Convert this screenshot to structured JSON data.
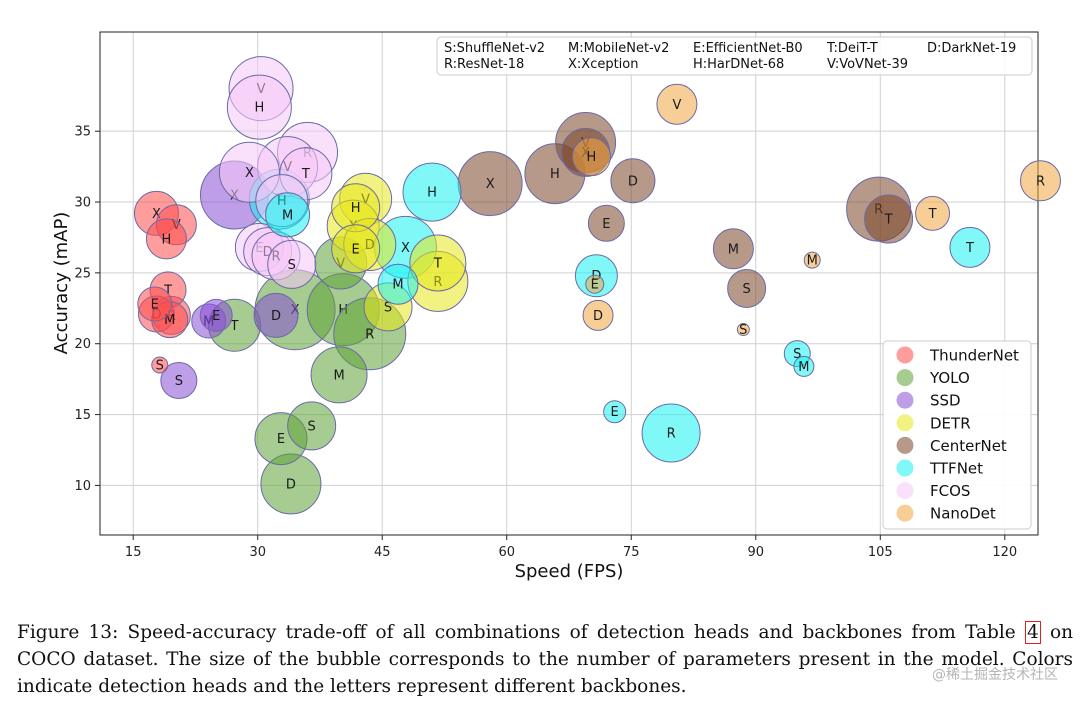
{
  "chart_data": {
    "type": "scatter",
    "subtype": "bubble",
    "xlabel": "Speed (FPS)",
    "ylabel": "Accuracy (mAP)",
    "xlim": [
      11,
      124
    ],
    "ylim": [
      6.5,
      42
    ],
    "xticks": [
      15,
      30,
      45,
      60,
      75,
      90,
      105,
      120
    ],
    "yticks": [
      10,
      15,
      20,
      25,
      30,
      35
    ],
    "grid": true,
    "legend_position": "lower-right",
    "backbone_key": [
      {
        "letter": "S",
        "text": "S:ShuffleNet-v2"
      },
      {
        "letter": "M",
        "text": "M:MobileNet-v2"
      },
      {
        "letter": "E",
        "text": "E:EfficientNet-B0"
      },
      {
        "letter": "T",
        "text": "T:DeiT-T"
      },
      {
        "letter": "D",
        "text": "D:DarkNet-19"
      },
      {
        "letter": "R",
        "text": "R:ResNet-18"
      },
      {
        "letter": "X",
        "text": "X:Xception"
      },
      {
        "letter": "H",
        "text": "H:HarDNet-68"
      },
      {
        "letter": "V",
        "text": "V:VoVNet-39"
      }
    ],
    "series": [
      {
        "name": "ThunderNet",
        "color": "#ff4d4d",
        "points": [
          {
            "letter": "X",
            "x": 17.8,
            "y": 29.2,
            "size": 22
          },
          {
            "letter": "V",
            "x": 20.2,
            "y": 28.4,
            "size": 20
          },
          {
            "letter": "H",
            "x": 19.0,
            "y": 27.4,
            "size": 20
          },
          {
            "letter": "T",
            "x": 19.2,
            "y": 23.8,
            "size": 18
          },
          {
            "letter": "E",
            "x": 17.6,
            "y": 22.8,
            "size": 17
          },
          {
            "letter": "D",
            "x": 17.8,
            "y": 22.1,
            "size": 18
          },
          {
            "letter": "R",
            "x": 19.6,
            "y": 22.0,
            "size": 19
          },
          {
            "letter": "M",
            "x": 19.4,
            "y": 21.7,
            "size": 18
          },
          {
            "letter": "S",
            "x": 18.2,
            "y": 18.5,
            "size": 8
          }
        ]
      },
      {
        "name": "YOLO",
        "color": "#5ea336",
        "points": [
          {
            "letter": "T",
            "x": 27.2,
            "y": 21.3,
            "size": 26
          },
          {
            "letter": "X",
            "x": 34.5,
            "y": 22.4,
            "size": 40
          },
          {
            "letter": "H",
            "x": 40.3,
            "y": 22.4,
            "size": 36
          },
          {
            "letter": "R",
            "x": 43.5,
            "y": 20.7,
            "size": 36
          },
          {
            "letter": "V",
            "x": 40.0,
            "y": 25.7,
            "size": 26
          },
          {
            "letter": "M",
            "x": 39.8,
            "y": 17.8,
            "size": 28
          },
          {
            "letter": "S",
            "x": 36.5,
            "y": 14.2,
            "size": 24
          },
          {
            "letter": "E",
            "x": 32.8,
            "y": 13.3,
            "size": 26
          },
          {
            "letter": "D",
            "x": 34.0,
            "y": 10.1,
            "size": 30
          }
        ]
      },
      {
        "name": "SSD",
        "color": "#8a4fd6",
        "points": [
          {
            "letter": "X",
            "x": 27.2,
            "y": 30.5,
            "size": 34
          },
          {
            "letter": "S",
            "x": 20.5,
            "y": 17.4,
            "size": 18
          },
          {
            "letter": "M",
            "x": 24.1,
            "y": 21.6,
            "size": 17
          },
          {
            "letter": "E",
            "x": 25.0,
            "y": 22.0,
            "size": 16
          },
          {
            "letter": "D",
            "x": 32.2,
            "y": 22.0,
            "size": 22
          }
        ]
      },
      {
        "name": "DETR",
        "color": "#e8e81c",
        "points": [
          {
            "letter": "V",
            "x": 43.0,
            "y": 30.2,
            "size": 26
          },
          {
            "letter": "H",
            "x": 41.8,
            "y": 29.6,
            "size": 24
          },
          {
            "letter": "X",
            "x": 41.5,
            "y": 28.3,
            "size": 26
          },
          {
            "letter": "D",
            "x": 43.5,
            "y": 27.0,
            "size": 26
          },
          {
            "letter": "E",
            "x": 41.8,
            "y": 26.7,
            "size": 24
          },
          {
            "letter": "T",
            "x": 51.7,
            "y": 25.7,
            "size": 28
          },
          {
            "letter": "R",
            "x": 51.7,
            "y": 24.4,
            "size": 30
          },
          {
            "letter": "S",
            "x": 45.7,
            "y": 22.6,
            "size": 24
          }
        ]
      },
      {
        "name": "CenterNet",
        "color": "#7b4528",
        "points": [
          {
            "letter": "X",
            "x": 58.0,
            "y": 31.3,
            "size": 32
          },
          {
            "letter": "H",
            "x": 65.8,
            "y": 32.0,
            "size": 30
          },
          {
            "letter": "V",
            "x": 69.5,
            "y": 34.2,
            "size": 30
          },
          {
            "letter": "X",
            "x": 69.5,
            "y": 33.5,
            "size": 24
          },
          {
            "letter": "D",
            "x": 75.2,
            "y": 31.5,
            "size": 22
          },
          {
            "letter": "E",
            "x": 72.0,
            "y": 28.5,
            "size": 18
          },
          {
            "letter": "M",
            "x": 87.3,
            "y": 26.7,
            "size": 20
          },
          {
            "letter": "S",
            "x": 88.9,
            "y": 23.9,
            "size": 19
          },
          {
            "letter": "R",
            "x": 104.8,
            "y": 29.5,
            "size": 32
          },
          {
            "letter": "T",
            "x": 106.0,
            "y": 28.8,
            "size": 24
          }
        ]
      },
      {
        "name": "TTFNet",
        "color": "#19f2f2",
        "points": [
          {
            "letter": "H",
            "x": 51.0,
            "y": 30.7,
            "size": 29
          },
          {
            "letter": "X",
            "x": 47.8,
            "y": 26.8,
            "size": 31
          },
          {
            "letter": "M",
            "x": 46.9,
            "y": 24.2,
            "size": 20
          },
          {
            "letter": "D",
            "x": 70.8,
            "y": 24.8,
            "size": 21
          },
          {
            "letter": "E",
            "x": 73.0,
            "y": 15.2,
            "size": 11
          },
          {
            "letter": "R",
            "x": 79.8,
            "y": 13.7,
            "size": 29
          },
          {
            "letter": "S",
            "x": 95.0,
            "y": 19.3,
            "size": 13
          },
          {
            "letter": "M",
            "x": 95.8,
            "y": 18.4,
            "size": 10
          },
          {
            "letter": "T",
            "x": 115.8,
            "y": 26.8,
            "size": 20
          },
          {
            "letter": "T",
            "x": 32.6,
            "y": 30.2,
            "size": 30
          },
          {
            "letter": "M",
            "x": 33.6,
            "y": 29.1,
            "size": 22
          }
        ]
      },
      {
        "name": "FCOS",
        "color": "#f5c8f7",
        "points": [
          {
            "letter": "V",
            "x": 30.4,
            "y": 38.0,
            "size": 32
          },
          {
            "letter": "H",
            "x": 30.2,
            "y": 36.7,
            "size": 32
          },
          {
            "letter": "R",
            "x": 36.0,
            "y": 33.5,
            "size": 30
          },
          {
            "letter": "V",
            "x": 33.6,
            "y": 32.5,
            "size": 30
          },
          {
            "letter": "T",
            "x": 35.8,
            "y": 32.0,
            "size": 26
          },
          {
            "letter": "X",
            "x": 29.0,
            "y": 32.1,
            "size": 30
          },
          {
            "letter": "H",
            "x": 32.9,
            "y": 30.1,
            "size": 26
          },
          {
            "letter": "E",
            "x": 30.2,
            "y": 26.8,
            "size": 24
          },
          {
            "letter": "D",
            "x": 31.2,
            "y": 26.5,
            "size": 24
          },
          {
            "letter": "R",
            "x": 32.2,
            "y": 26.2,
            "size": 24
          },
          {
            "letter": "S",
            "x": 34.1,
            "y": 25.6,
            "size": 24
          }
        ]
      },
      {
        "name": "NanoDet",
        "color": "#f2a541",
        "points": [
          {
            "letter": "V",
            "x": 80.5,
            "y": 36.9,
            "size": 20
          },
          {
            "letter": "H",
            "x": 70.2,
            "y": 33.2,
            "size": 19
          },
          {
            "letter": "R",
            "x": 124.3,
            "y": 31.5,
            "size": 20
          },
          {
            "letter": "T",
            "x": 111.3,
            "y": 29.2,
            "size": 17
          },
          {
            "letter": "E",
            "x": 70.6,
            "y": 24.2,
            "size": 9
          },
          {
            "letter": "D",
            "x": 71.0,
            "y": 22.0,
            "size": 15
          },
          {
            "letter": "M",
            "x": 96.8,
            "y": 25.9,
            "size": 8
          },
          {
            "letter": "S",
            "x": 88.5,
            "y": 21.0,
            "size": 6
          }
        ]
      }
    ]
  },
  "caption": {
    "prefix": "Figure 13: Speed-accuracy trade-off of all combinations of detection heads and backbones from Table ",
    "ref": "4",
    "suffix": " on COCO dataset. The size of the bubble corresponds to the number of parameters present in the model. Colors indicate detection heads and the letters represent different backbones."
  },
  "watermark": "@稀土掘金技术社区"
}
